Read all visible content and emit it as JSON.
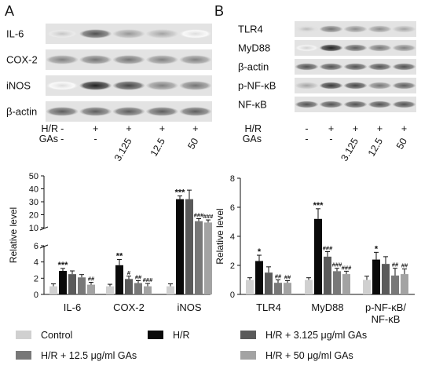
{
  "panels": [
    {
      "letter": "A",
      "blots": [
        "IL-6",
        "COX-2",
        "iNOS",
        "β-actin"
      ],
      "conditions": {
        "labels": [
          "H/R",
          "GAs"
        ],
        "hr": [
          "-",
          "+",
          "+",
          "+",
          "+"
        ],
        "gas": [
          "-",
          "-",
          "3.125",
          "12.5",
          "50"
        ]
      }
    },
    {
      "letter": "B",
      "blots": [
        "TLR4",
        "MyD88",
        "β-actin",
        "p-NF-κB",
        "NF-κB"
      ],
      "conditions": {
        "labels": [
          "H/R",
          "GAs"
        ],
        "hr": [
          "-",
          "+",
          "+",
          "+",
          "+"
        ],
        "gas": [
          "-",
          "-",
          "3.125",
          "12.5",
          "50"
        ]
      }
    }
  ],
  "legend": [
    {
      "label": "Control",
      "color": "#d0d0d0"
    },
    {
      "label": "H/R",
      "color": "#0a0a0a"
    },
    {
      "label": "H/R + 3.125 μg/ml GAs",
      "color": "#5a5a5a"
    },
    {
      "label": "H/R + 12.5 μg/ml GAs",
      "color": "#787878"
    },
    {
      "label": "H/R + 50 μg/ml GAs",
      "color": "#a3a3a3"
    }
  ],
  "chart_data": [
    {
      "type": "bar",
      "panel": "A",
      "ylabel": "Relative level",
      "broken_axis": true,
      "ylim_lower": [
        0,
        6
      ],
      "ylim_upper": [
        10,
        50
      ],
      "yticks_lower": [
        0,
        2,
        4,
        6
      ],
      "yticks_upper": [
        10,
        20,
        30,
        40,
        50
      ],
      "categories": [
        "IL-6",
        "COX-2",
        "iNOS"
      ],
      "series": [
        {
          "name": "Control",
          "values": [
            1.0,
            1.0,
            1.0
          ],
          "errors": [
            0.3,
            0.25,
            0.3
          ]
        },
        {
          "name": "H/R",
          "values": [
            2.9,
            3.6,
            32
          ],
          "errors": [
            0.3,
            0.7,
            2.5
          ]
        },
        {
          "name": "H/R + 3.125 μg/ml GAs",
          "values": [
            2.5,
            1.9,
            32
          ],
          "errors": [
            0.4,
            0.35,
            7
          ]
        },
        {
          "name": "H/R + 12.5 μg/ml GAs",
          "values": [
            2.1,
            1.4,
            15
          ],
          "errors": [
            0.35,
            0.3,
            2
          ]
        },
        {
          "name": "H/R + 50 μg/ml GAs",
          "values": [
            1.2,
            1.0,
            14
          ],
          "errors": [
            0.3,
            0.35,
            2
          ]
        }
      ],
      "significance": [
        [
          "",
          "***",
          "",
          "",
          "##"
        ],
        [
          "",
          "**",
          "#",
          "##",
          "###"
        ],
        [
          "",
          "***",
          "",
          "###",
          "###"
        ]
      ]
    },
    {
      "type": "bar",
      "panel": "B",
      "ylabel": "Relative level",
      "ylim": [
        0,
        8
      ],
      "yticks": [
        0,
        2,
        4,
        6,
        8
      ],
      "categories": [
        "TLR4",
        "MyD88",
        "p-NF-κB/\nNF-κB"
      ],
      "series": [
        {
          "name": "Control",
          "values": [
            1.0,
            1.0,
            1.0
          ],
          "errors": [
            0.15,
            0.15,
            0.25
          ]
        },
        {
          "name": "H/R",
          "values": [
            2.3,
            5.2,
            2.4
          ],
          "errors": [
            0.4,
            0.7,
            0.5
          ]
        },
        {
          "name": "H/R + 3.125 μg/ml GAs",
          "values": [
            1.5,
            2.6,
            2.1
          ],
          "errors": [
            0.4,
            0.35,
            0.5
          ]
        },
        {
          "name": "H/R + 12.5 μg/ml GAs",
          "values": [
            0.8,
            1.6,
            1.3
          ],
          "errors": [
            0.2,
            0.2,
            0.5
          ]
        },
        {
          "name": "H/R + 50 μg/ml GAs",
          "values": [
            0.8,
            1.4,
            1.4
          ],
          "errors": [
            0.15,
            0.2,
            0.35
          ]
        }
      ],
      "significance": [
        [
          "",
          "*",
          "",
          "##",
          "##"
        ],
        [
          "",
          "***",
          "###",
          "###",
          "###"
        ],
        [
          "",
          "*",
          "",
          "##",
          "##"
        ]
      ]
    }
  ]
}
